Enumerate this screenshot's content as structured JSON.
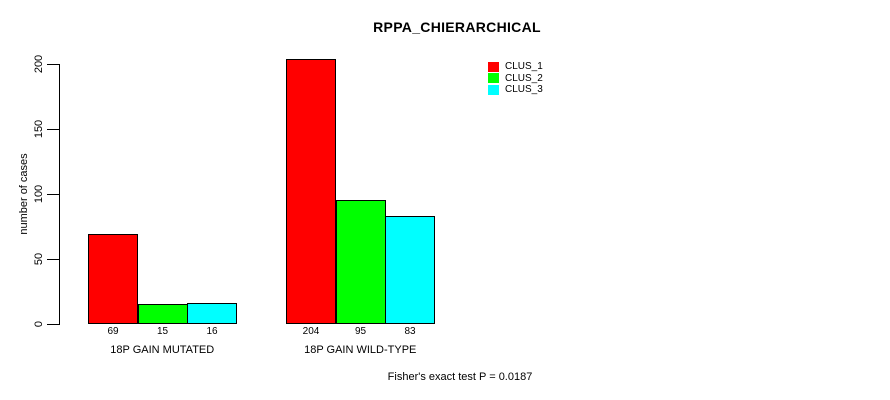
{
  "title": "RPPA_CHIERARCHICAL",
  "y_axis": {
    "label": "number of cases",
    "ticks": [
      0,
      50,
      100,
      150,
      200
    ]
  },
  "legend": {
    "items": [
      {
        "label": "CLUS_1",
        "color": "#ff0000"
      },
      {
        "label": "CLUS_2",
        "color": "#00ff00"
      },
      {
        "label": "CLUS_3",
        "color": "#00ffff"
      }
    ]
  },
  "footer": "Fisher's exact test P = 0.0187",
  "chart_data": {
    "type": "bar",
    "title": "RPPA_CHIERARCHICAL",
    "categories": [
      "18P GAIN MUTATED",
      "18P GAIN WILD-TYPE"
    ],
    "series": [
      {
        "name": "CLUS_1",
        "color": "#ff0000",
        "values": [
          69,
          204
        ]
      },
      {
        "name": "CLUS_2",
        "color": "#00ff00",
        "values": [
          15,
          95
        ]
      },
      {
        "name": "CLUS_3",
        "color": "#00ffff",
        "values": [
          16,
          83
        ]
      }
    ],
    "bar_value_labels": [
      [
        69,
        15,
        16
      ],
      [
        204,
        95,
        83
      ]
    ],
    "xlabel": "",
    "ylabel": "number of cases",
    "ylim": [
      0,
      200
    ],
    "yticks": [
      0,
      50,
      100,
      150,
      200
    ],
    "grid": false,
    "legend_position": "top-right",
    "annotation": "Fisher's exact test P = 0.0187"
  }
}
